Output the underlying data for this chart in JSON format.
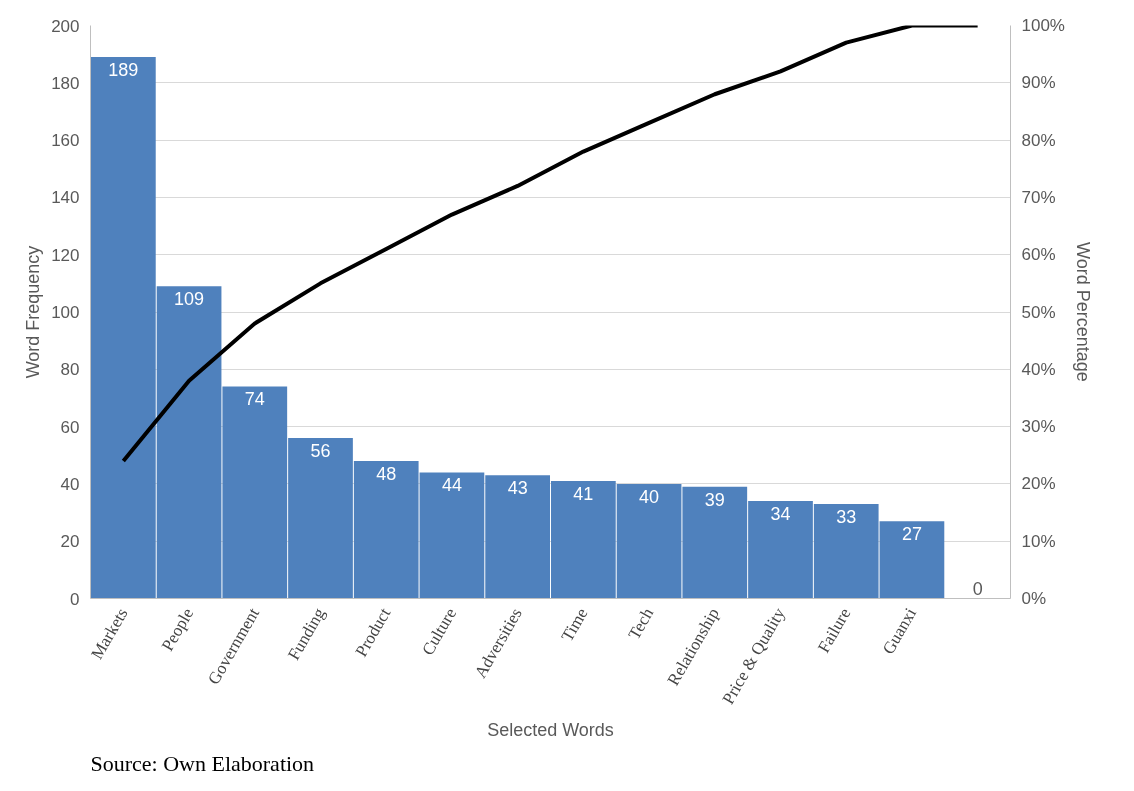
{
  "chart_data": {
    "type": "bar",
    "xlabel": "Selected Words",
    "ylabel": "Word Frequency",
    "y2label": "Word Percentage",
    "categories": [
      "Markets",
      "People",
      "Government",
      "Funding",
      "Product",
      "Culture",
      "Adversities",
      "Time",
      "Tech",
      "Relationship",
      "Price & Quality",
      "Failure",
      "Guanxi",
      null
    ],
    "series": [
      {
        "color": "#4f81bd",
        "values": [
          189,
          109,
          74,
          56,
          48,
          44,
          43,
          41,
          40,
          39,
          34,
          33,
          27,
          0
        ],
        "data_labels": true
      },
      {
        "type": "line",
        "axis": "y2",
        "color": "#000000",
        "values": [
          24,
          38,
          48,
          55,
          61,
          67,
          72,
          78,
          83,
          88,
          92,
          97,
          100,
          100
        ],
        "marker": "none",
        "line_style": "solid"
      }
    ],
    "ylim": [
      0,
      200
    ],
    "yticks": [
      0,
      20,
      40,
      60,
      80,
      100,
      120,
      140,
      160,
      180,
      200
    ],
    "y2lim": [
      0,
      100
    ],
    "y2ticks": [
      {
        "value": 0,
        "label": "0%"
      },
      {
        "value": 10,
        "label": "10%"
      },
      {
        "value": 20,
        "label": "20%"
      },
      {
        "value": 30,
        "label": "30%"
      },
      {
        "value": 40,
        "label": "40%"
      },
      {
        "value": 50,
        "label": "50%"
      },
      {
        "value": 60,
        "label": "60%"
      },
      {
        "value": 70,
        "label": "70%"
      },
      {
        "value": 80,
        "label": "80%"
      },
      {
        "value": 90,
        "label": "90%"
      },
      {
        "value": 100,
        "label": "100%"
      }
    ],
    "grid": "y",
    "annotations": [
      "Source: Own Elaboration"
    ]
  }
}
